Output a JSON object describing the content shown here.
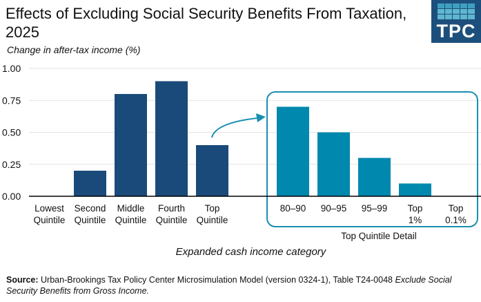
{
  "title": "Effects of Excluding Social Security Benefits From Taxation, 2025",
  "subtitle": "Change in after-tax income (%)",
  "logo": "TPC",
  "source_label": "Source:",
  "source_text": " Urban-Brookings Tax Policy Center Microsimulation Model (version 0324-1), Table T24-0048 ",
  "source_italic": "Exclude Social Security Benefits from Gross Income.",
  "colors": {
    "quintile_bars": "#1a4a7a",
    "detail_bars": "#0088ae",
    "detail_box": "#1a8fb0"
  },
  "chart_data": {
    "type": "bar",
    "xlabel": "Expanded cash income category",
    "ylabel": "Change in after-tax income (%)",
    "ylim": [
      0,
      1.0
    ],
    "yticks": [
      "0.00",
      "0.25",
      "0.50",
      "0.75",
      "1.00"
    ],
    "grid": true,
    "groups": [
      {
        "name": "",
        "categories": [
          [
            "Lowest",
            "Quintile"
          ],
          [
            "Second",
            "Quintile"
          ],
          [
            "Middle",
            "Quintile"
          ],
          [
            "Fourth",
            "Quintile"
          ],
          [
            "Top",
            "Quintile"
          ]
        ],
        "values": [
          0.0,
          0.2,
          0.8,
          0.9,
          0.4
        ]
      },
      {
        "name": "Top Quintile Detail",
        "categories": [
          [
            "80–90"
          ],
          [
            "90–95"
          ],
          [
            "95–99"
          ],
          [
            "Top",
            "1%"
          ],
          [
            "Top",
            "0.1%"
          ]
        ],
        "values": [
          0.7,
          0.5,
          0.3,
          0.1,
          0.0
        ]
      }
    ]
  }
}
